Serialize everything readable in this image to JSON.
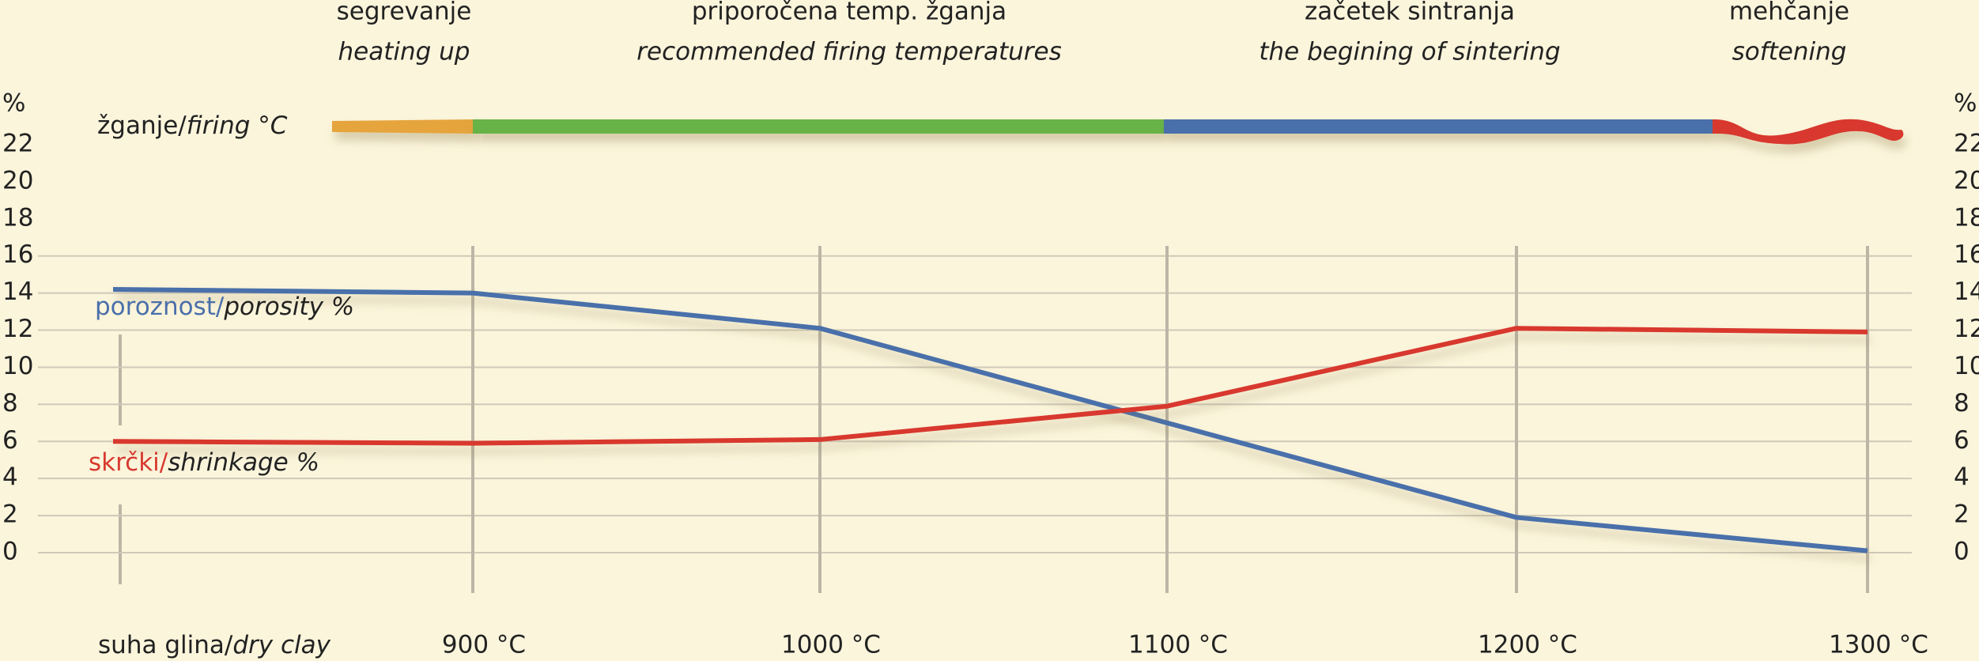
{
  "chart_data": {
    "type": "line",
    "y_label": "%",
    "firing_label": "žganje/firing °C",
    "phases": [
      {
        "label": "segrevanje",
        "label_en": "heating up",
        "color": "#e6a43c"
      },
      {
        "label": "priporočena temp. žganja",
        "label_en": "recommended firing temperatures",
        "color": "#67b346"
      },
      {
        "label": "začetek sintranja",
        "label_en": "the begining of sintering",
        "color": "#4a6faa"
      },
      {
        "label": "mehčanje",
        "label_en": "softening",
        "color": "#d8392f"
      }
    ],
    "categories": [
      "suha glina/dry clay",
      "900 °C",
      "1000 °C",
      "1100 °C",
      "1200 °C",
      "1300 °C"
    ],
    "series": [
      {
        "name": "poroznost/porosity %",
        "color": "#4a6faa",
        "values": [
          14.2,
          14.0,
          12.1,
          7.0,
          1.9,
          0.1
        ]
      },
      {
        "name": "skrčki/shrinkage %",
        "color": "#d8392f",
        "values": [
          6.0,
          5.9,
          6.1,
          7.9,
          12.1,
          11.9
        ]
      }
    ],
    "ylim": [
      0,
      22
    ],
    "yticks": [
      0,
      2,
      4,
      6,
      8,
      10,
      12,
      14,
      16,
      18,
      20,
      22
    ],
    "grid": true
  }
}
